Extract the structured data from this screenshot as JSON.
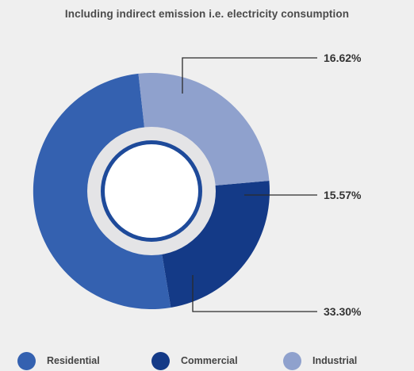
{
  "chart_data": {
    "type": "pie",
    "title": "Including indirect emission i.e. electricity consumption",
    "series": [
      {
        "name": "Residential",
        "value": 33.3,
        "label": "33.30%",
        "color": "#3461b0"
      },
      {
        "name": "Commercial",
        "value": 15.57,
        "label": "15.57%",
        "color": "#143a87"
      },
      {
        "name": "Industrial",
        "value": 16.62,
        "label": "16.62%",
        "color": "#8fa1cd"
      }
    ],
    "legend_placement": "bottom"
  }
}
